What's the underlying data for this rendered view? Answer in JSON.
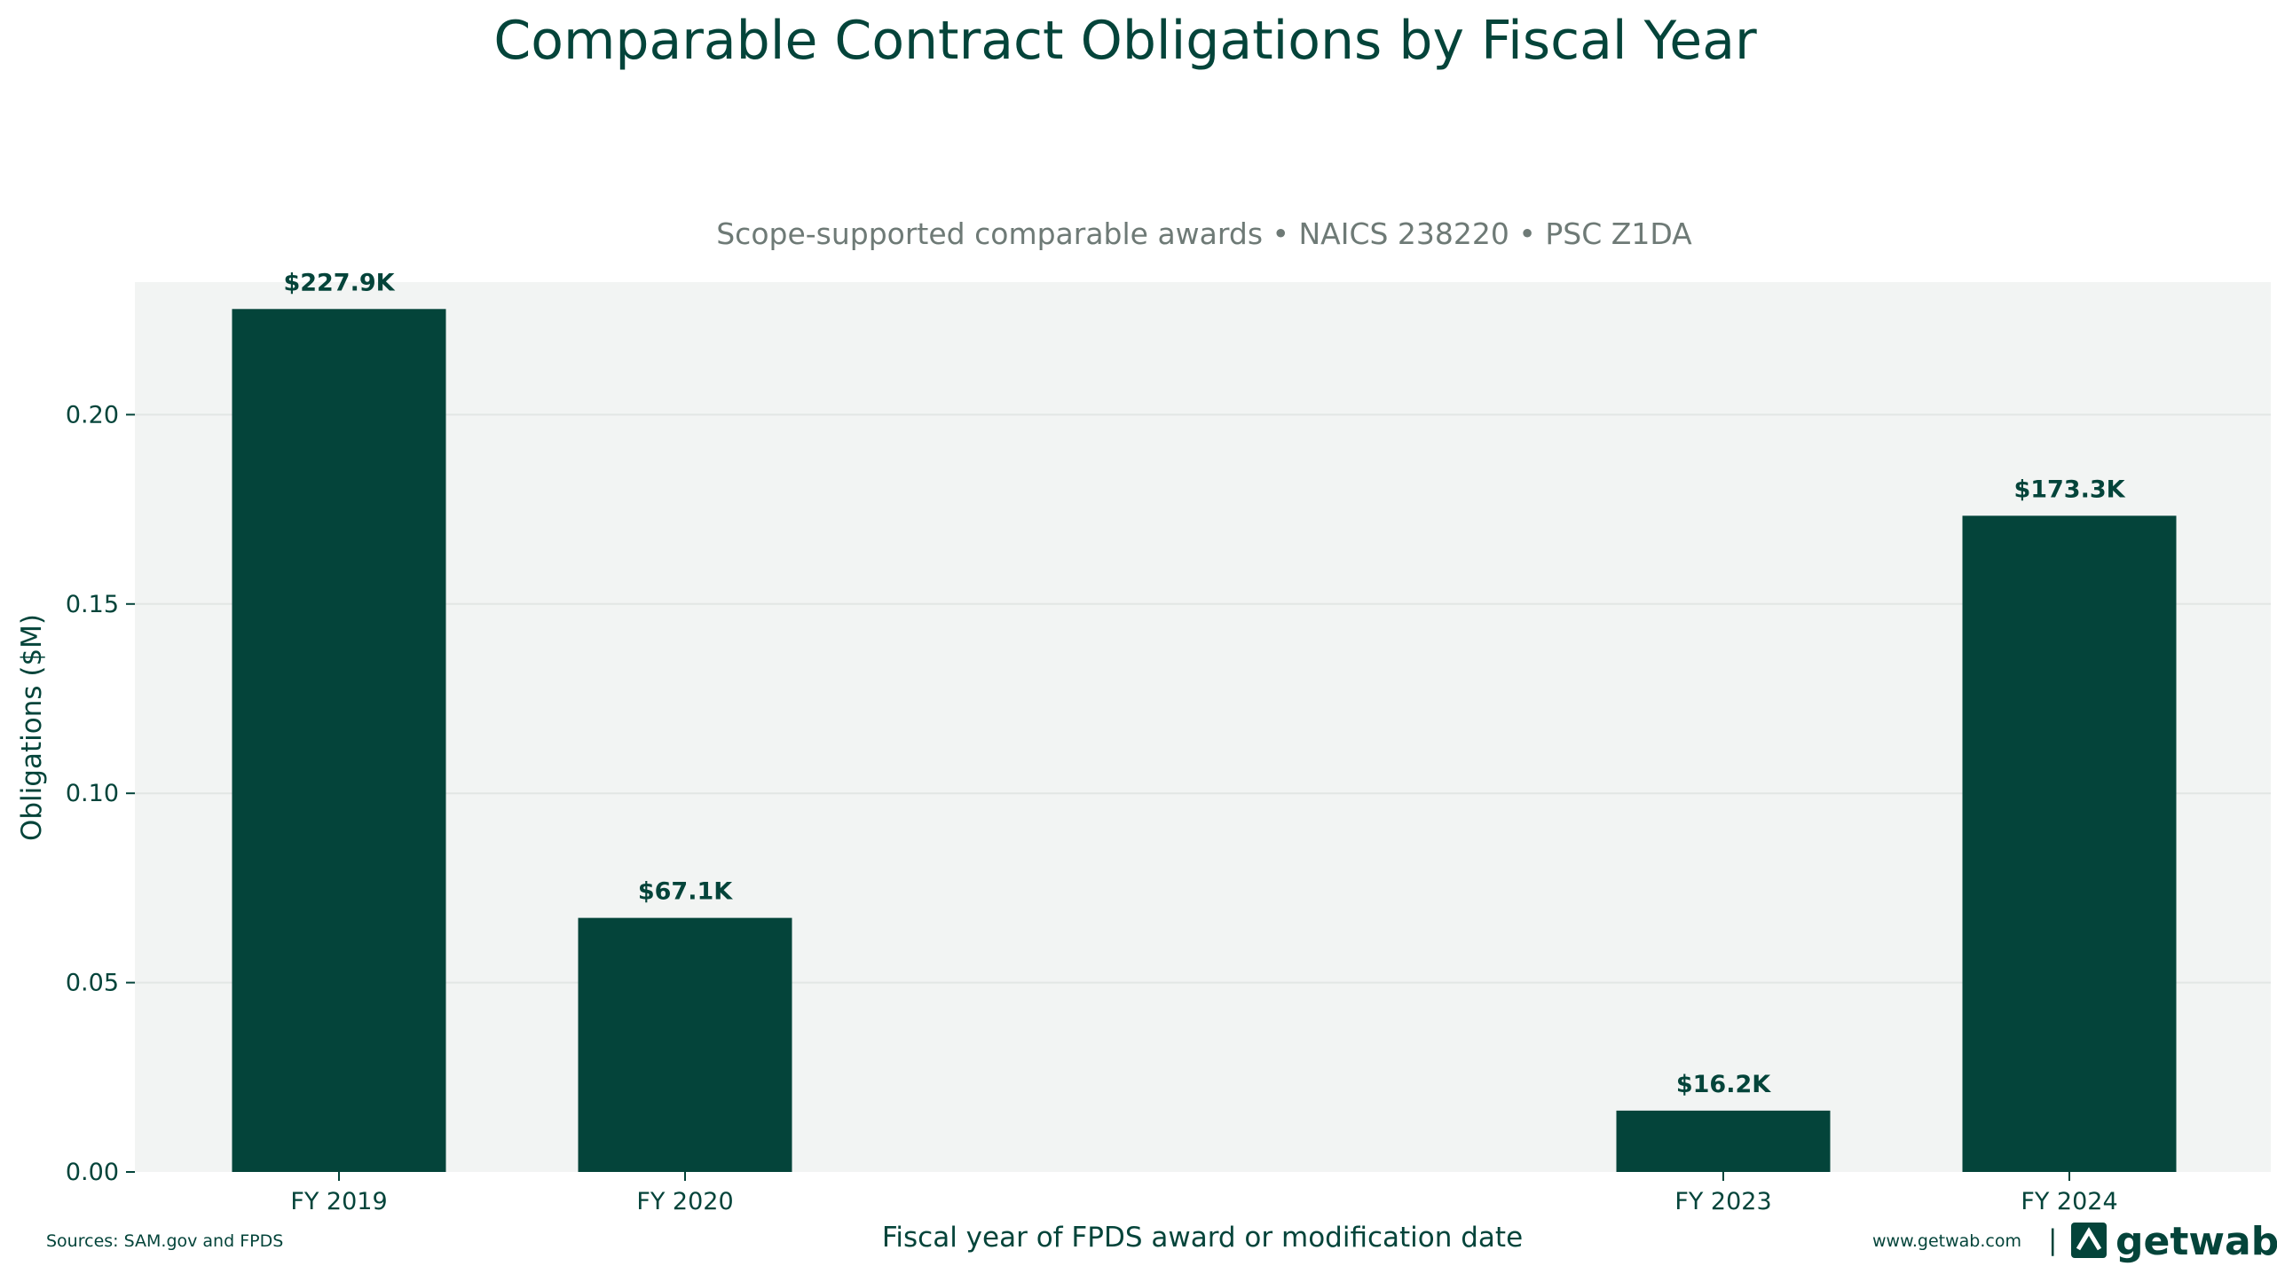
{
  "chart_data": {
    "type": "bar",
    "title": "Comparable Contract Obligations by Fiscal Year",
    "subtitle": "Scope-supported comparable awards • NAICS 238220 • PSC Z1DA",
    "xlabel": "Fiscal year of FPDS award or modification date",
    "ylabel": "Obligations ($M)",
    "categories": [
      "FY 2019",
      "FY 2020",
      "FY 2023",
      "FY 2024"
    ],
    "x_years": [
      2019,
      2020,
      2023,
      2024
    ],
    "values": [
      0.2279,
      0.0671,
      0.0162,
      0.1733
    ],
    "data_labels": [
      "$227.9K",
      "$67.1K",
      "$16.2K",
      "$173.3K"
    ],
    "ylim": [
      0,
      0.235
    ],
    "yticks": [
      0.0,
      0.05,
      0.1,
      0.15,
      0.2
    ],
    "ytick_labels": [
      "0.00",
      "0.05",
      "0.10",
      "0.15",
      "0.20"
    ],
    "grid": true,
    "colors": {
      "bar": "#04443a",
      "plot_bg": "#f2f4f3",
      "grid": "#e2e6e4",
      "text": "#04443a",
      "subtitle": "#6e7a76"
    }
  },
  "footer": {
    "sources": "Sources: SAM.gov and FPDS",
    "website": "www.getwab.com",
    "separator": "|",
    "brand_name": "getwab",
    "brand_icon": "getwab-logo-icon"
  }
}
